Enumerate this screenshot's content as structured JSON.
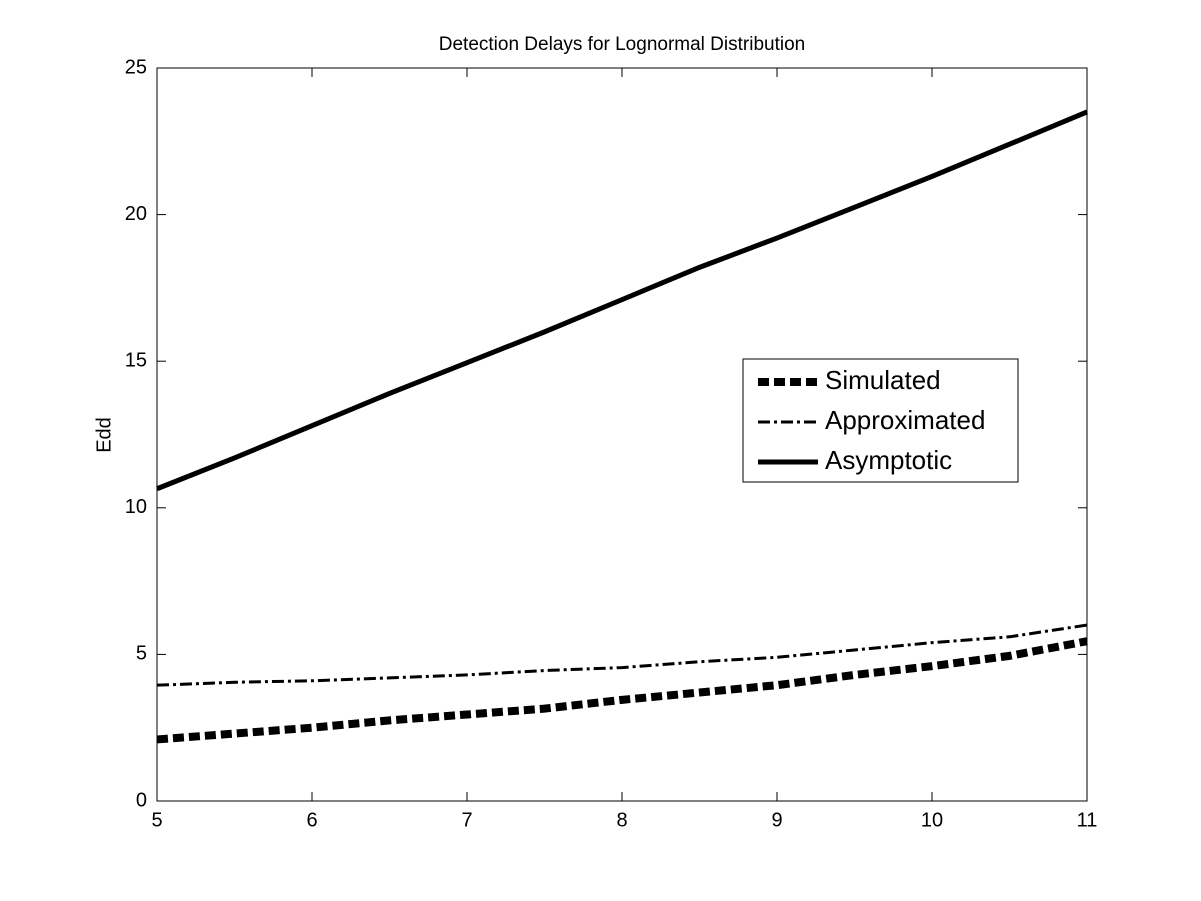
{
  "chart_data": {
    "type": "line",
    "title": "Detection Delays for Lognormal Distribution",
    "y_label": "Edd",
    "x": [
      5,
      5.5,
      6,
      6.5,
      7,
      7.5,
      8,
      8.5,
      9,
      9.5,
      10,
      10.5,
      11
    ],
    "series": [
      {
        "name": "Simulated",
        "color": "#000000",
        "linestyle": "--",
        "values": [
          2.1,
          2.3,
          2.5,
          2.75,
          2.95,
          3.15,
          3.45,
          3.7,
          3.95,
          4.3,
          4.6,
          4.95,
          5.45
        ]
      },
      {
        "name": "Approximated",
        "color": "#000000",
        "linestyle": "-.",
        "values": [
          3.95,
          4.05,
          4.1,
          4.2,
          4.3,
          4.45,
          4.55,
          4.75,
          4.9,
          5.15,
          5.4,
          5.6,
          6.0
        ]
      },
      {
        "name": "Asymptotic",
        "color": "#000000",
        "linestyle": "-",
        "values": [
          10.65,
          11.7,
          12.8,
          13.9,
          14.95,
          16.0,
          17.1,
          18.2,
          19.2,
          20.25,
          21.3,
          22.4,
          23.5
        ]
      }
    ],
    "xlim": [
      5,
      11
    ],
    "xticks": [
      5,
      6,
      7,
      8,
      9,
      10,
      11
    ],
    "ylim": [
      0,
      25
    ],
    "yticks": [
      0,
      5,
      10,
      15,
      20,
      25
    ],
    "grid": false,
    "legend": "right"
  }
}
